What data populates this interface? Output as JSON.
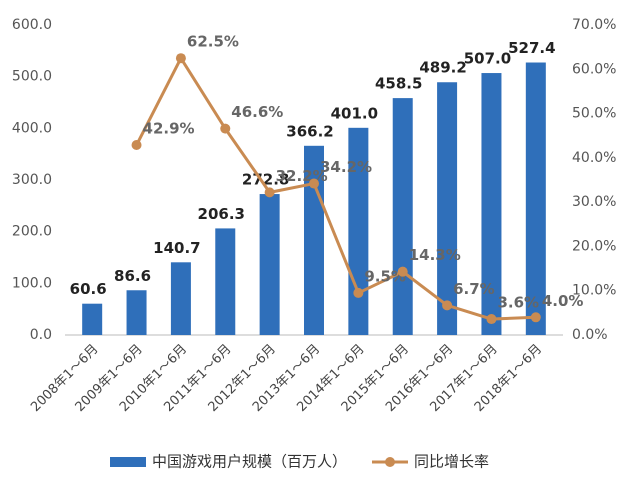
{
  "chart_data": {
    "type": "bar_line",
    "categories": [
      "2008年1～6月",
      "2009年1～6月",
      "2010年1～6月",
      "2011年1～6月",
      "2012年1～6月",
      "2013年1～6月",
      "2014年1～6月",
      "2015年1～6月",
      "2016年1～6月",
      "2017年1～6月",
      "2018年1～6月"
    ],
    "series": [
      {
        "name": "中国游戏用户规模（百万人）",
        "type": "bar",
        "color": "#2f6fba",
        "values": [
          60.6,
          86.6,
          140.7,
          206.3,
          272.8,
          366.2,
          401.0,
          458.5,
          489.2,
          507.0,
          527.4
        ],
        "value_labels": [
          "60.6",
          "86.6",
          "140.7",
          "206.3",
          "272.8",
          "366.2",
          "401.0",
          "458.5",
          "489.2",
          "507.0",
          "527.4"
        ]
      },
      {
        "name": "同比增长率",
        "type": "line",
        "axis": "y2",
        "color": "#c98b52",
        "values": [
          null,
          42.9,
          62.5,
          46.6,
          32.2,
          34.2,
          9.5,
          14.3,
          6.7,
          3.6,
          4.0
        ],
        "value_labels": [
          null,
          "42.9%",
          "62.5%",
          "46.6%",
          "32.2%",
          "34.2%",
          "9.5%",
          "14.3%",
          "6.7%",
          "3.6%",
          "4.0%"
        ]
      }
    ],
    "ylim": [
      0,
      600
    ],
    "yticks": [
      {
        "value": 0,
        "label": "0.0"
      },
      {
        "value": 100,
        "label": "100.0"
      },
      {
        "value": 200,
        "label": "200.0"
      },
      {
        "value": 300,
        "label": "300.0"
      },
      {
        "value": 400,
        "label": "400.0"
      },
      {
        "value": 500,
        "label": "500.0"
      },
      {
        "value": 600,
        "label": "600.0"
      }
    ],
    "y2lim": [
      0,
      70
    ],
    "y2ticks": [
      {
        "value": 0,
        "label": "0.0%"
      },
      {
        "value": 10,
        "label": "10.0%"
      },
      {
        "value": 20,
        "label": "20.0%"
      },
      {
        "value": 30,
        "label": "30.0%"
      },
      {
        "value": 40,
        "label": "40.0%"
      },
      {
        "value": 50,
        "label": "50.0%"
      },
      {
        "value": 60,
        "label": "60.0%"
      },
      {
        "value": 70,
        "label": "70.0%"
      }
    ],
    "legend": "bottom"
  }
}
